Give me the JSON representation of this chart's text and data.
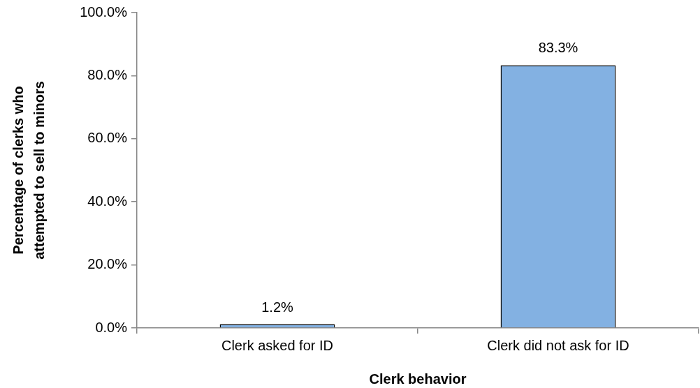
{
  "chart_data": {
    "type": "bar",
    "xlabel": "Clerk behavior",
    "ylabel": "Percentage of clerks who\nattempted to sell to minors",
    "categories": [
      "Clerk asked for ID",
      "Clerk did not ask for ID"
    ],
    "values": [
      1.2,
      83.3
    ],
    "color": "#83b1e2",
    "value_labels": [
      "1.2%",
      "83.3%"
    ],
    "ylim": [
      0,
      100
    ],
    "yticks": [
      {
        "value": 0,
        "label": "0.0%"
      },
      {
        "value": 20,
        "label": "20.0%"
      },
      {
        "value": 40,
        "label": "40.0%"
      },
      {
        "value": 60,
        "label": "60.0%"
      },
      {
        "value": 80,
        "label": "80.0%"
      },
      {
        "value": 100,
        "label": "100.0%"
      }
    ]
  }
}
